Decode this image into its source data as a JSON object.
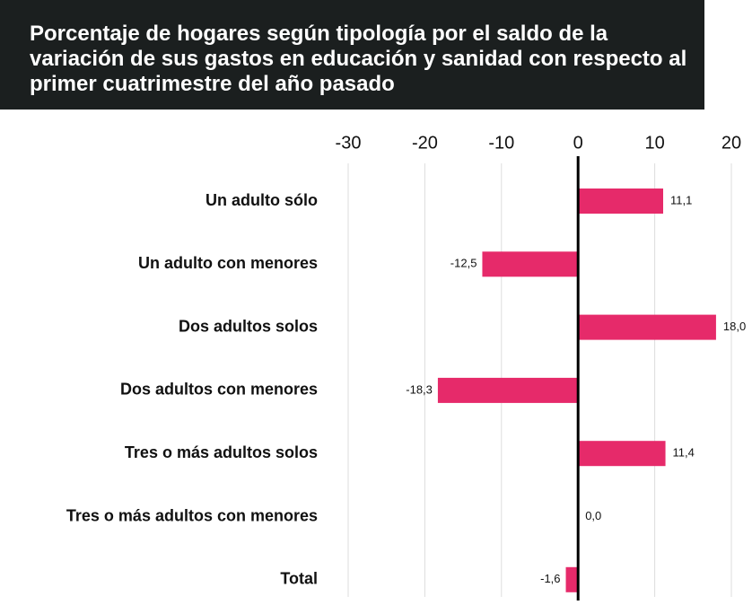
{
  "chart_data": {
    "type": "barh",
    "title": "Porcentaje de hogares según tipología por el saldo de la variación de sus gastos en educación y sanidad con respecto al primer cuatrimestre del año pasado",
    "categories": [
      "Un adulto sólo",
      "Un adulto con menores",
      "Dos adultos solos",
      "Dos adultos con menores",
      "Tres o más adultos solos",
      "Tres o más adultos con menores",
      "Total"
    ],
    "values": [
      11.1,
      -12.5,
      18.0,
      -18.3,
      11.4,
      0.0,
      -1.6
    ],
    "value_labels": [
      "11,1",
      "-12,5",
      "18,0",
      "-18,3",
      "11,4",
      "0,0",
      "-1,6"
    ],
    "color": "#e62a6a",
    "xlim": [
      -30,
      20
    ],
    "xticks": [
      -30,
      -20,
      -10,
      0,
      10,
      20
    ],
    "grid": true
  }
}
